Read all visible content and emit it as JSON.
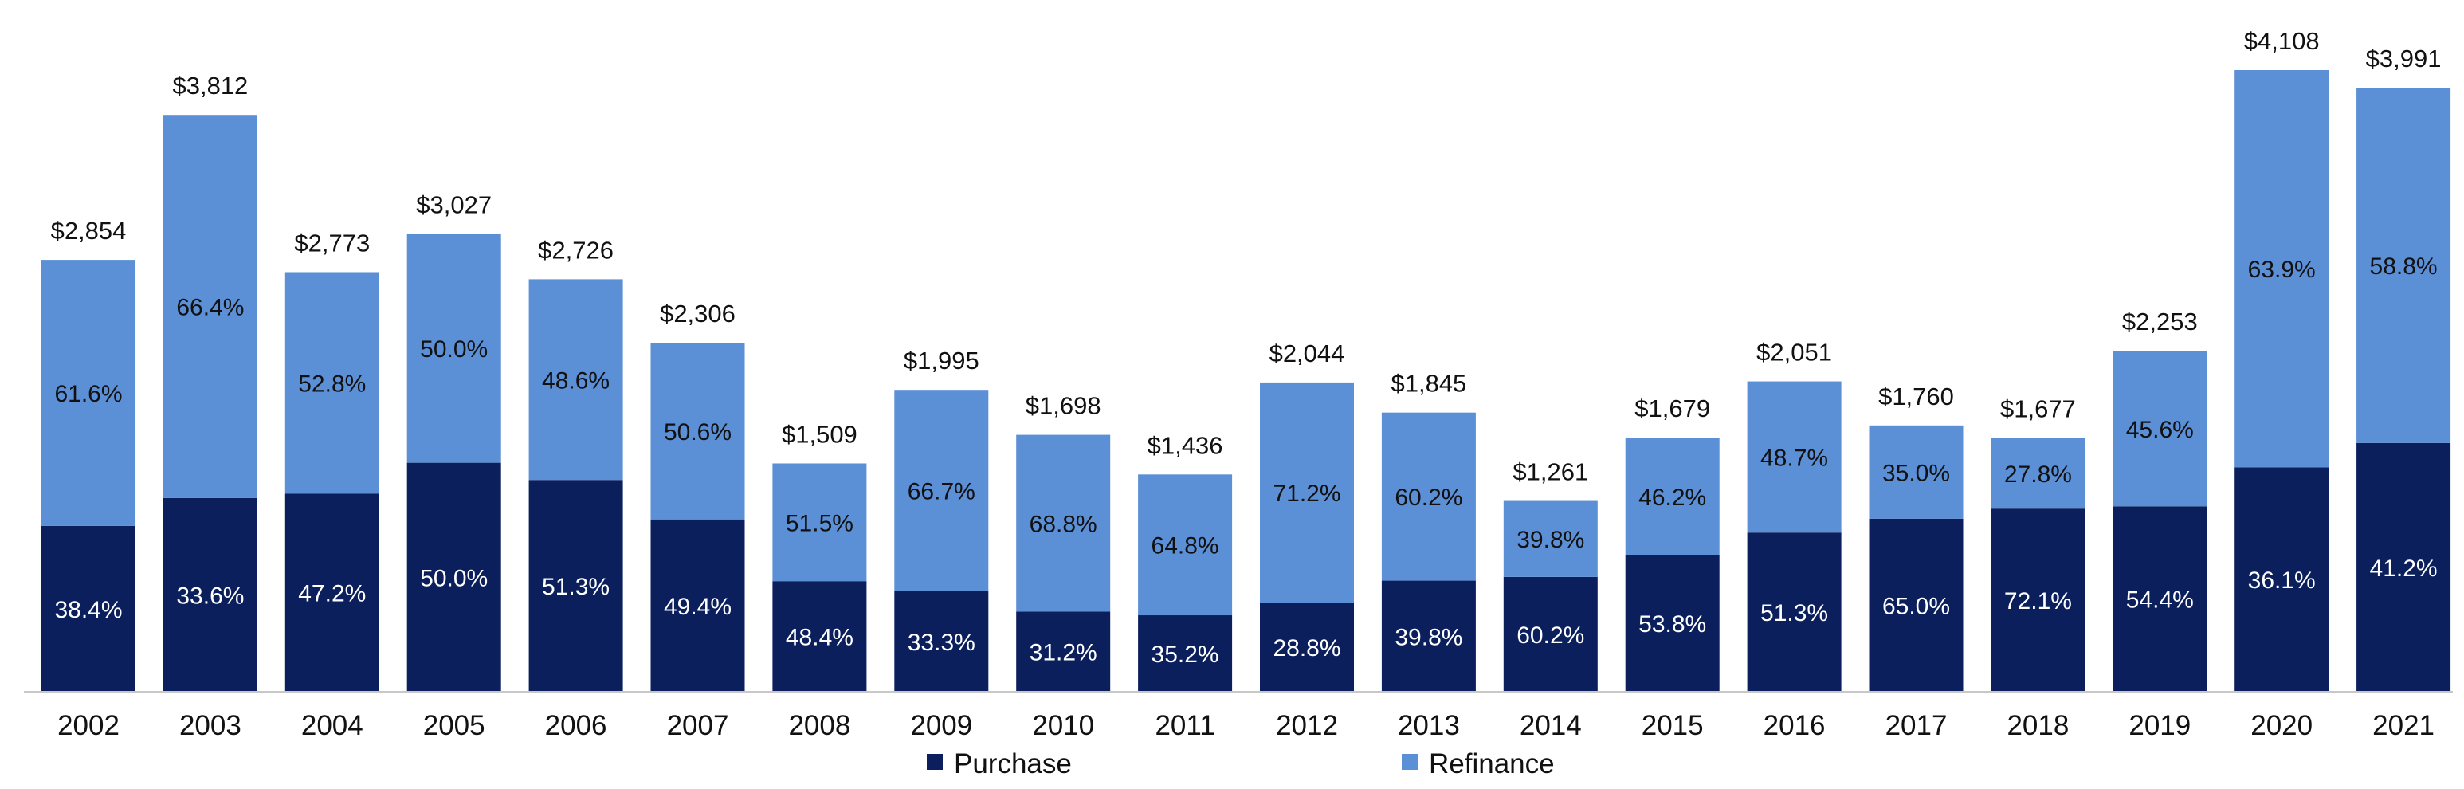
{
  "chart_data": {
    "type": "bar",
    "stacked": true,
    "title": "",
    "xlabel": "",
    "ylabel": "",
    "ylim": [
      0,
      4300
    ],
    "grid": false,
    "legend_position": "bottom",
    "categories": [
      "2002",
      "2003",
      "2004",
      "2005",
      "2006",
      "2007",
      "2008",
      "2009",
      "2010",
      "2011",
      "2012",
      "2013",
      "2014",
      "2015",
      "2016",
      "2017",
      "2018",
      "2019",
      "2020",
      "2021"
    ],
    "totals": [
      2854,
      3812,
      2773,
      3027,
      2726,
      2306,
      1509,
      1995,
      1698,
      1436,
      2044,
      1845,
      1261,
      1679,
      2051,
      1760,
      1677,
      2253,
      4108,
      3991
    ],
    "total_labels": [
      "$2,854",
      "$3,812",
      "$2,773",
      "$3,027",
      "$2,726",
      "$2,306",
      "$1,509",
      "$1,995",
      "$1,698",
      "$1,436",
      "$2,044",
      "$1,845",
      "$1,261",
      "$1,679",
      "$2,051",
      "$1,760",
      "$1,677",
      "$2,253",
      "$4,108",
      "$3,991"
    ],
    "series": [
      {
        "name": "Purchase",
        "color": "#0b1f5c",
        "share": [
          38.4,
          33.6,
          47.2,
          50.0,
          51.3,
          49.4,
          48.4,
          33.3,
          31.2,
          35.2,
          28.8,
          39.8,
          60.2,
          53.8,
          51.3,
          65.0,
          72.1,
          54.4,
          36.1,
          41.2
        ],
        "labels": [
          "38.4%",
          "33.6%",
          "47.2%",
          "50.0%",
          "51.3%",
          "49.4%",
          "48.4%",
          "33.3%",
          "31.2%",
          "35.2%",
          "28.8%",
          "39.8%",
          "60.2%",
          "53.8%",
          "51.3%",
          "65.0%",
          "72.1%",
          "54.4%",
          "36.1%",
          "41.2%"
        ]
      },
      {
        "name": "Refinance",
        "color": "#5b8fd6",
        "share": [
          61.6,
          66.4,
          52.8,
          50.0,
          48.6,
          50.6,
          51.5,
          66.7,
          68.8,
          64.8,
          71.2,
          60.2,
          39.8,
          46.2,
          48.7,
          35.0,
          27.8,
          45.6,
          63.9,
          58.8
        ],
        "labels": [
          "61.6%",
          "66.4%",
          "52.8%",
          "50.0%",
          "48.6%",
          "50.6%",
          "51.5%",
          "66.7%",
          "68.8%",
          "64.8%",
          "71.2%",
          "60.2%",
          "39.8%",
          "46.2%",
          "48.7%",
          "35.0%",
          "27.8%",
          "45.6%",
          "63.9%",
          "58.8%"
        ]
      }
    ]
  },
  "legend": [
    {
      "label": "Purchase",
      "color": "#0b1f5c"
    },
    {
      "label": "Refinance",
      "color": "#5b8fd6"
    }
  ]
}
